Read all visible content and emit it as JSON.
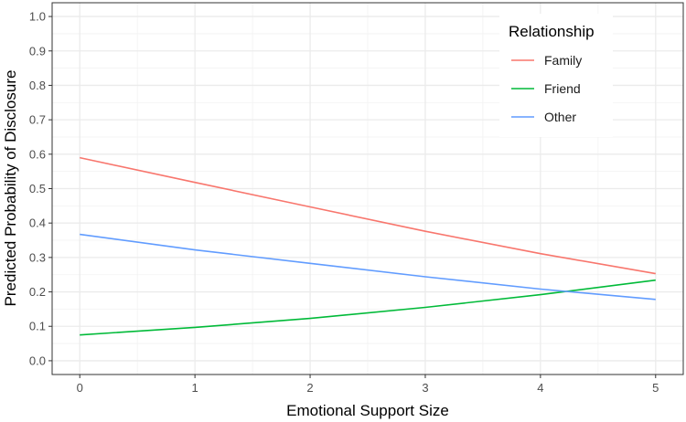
{
  "chart_data": {
    "type": "line",
    "xlabel": "Emotional Support Size",
    "ylabel": "Predicted Probability of Disclosure",
    "xlim": [
      -0.24,
      5.24
    ],
    "ylim": [
      -0.04,
      1.04
    ],
    "x_ticks": [
      0,
      1,
      2,
      3,
      4,
      5
    ],
    "x_tick_labels": [
      "0",
      "1",
      "2",
      "3",
      "4",
      "5"
    ],
    "y_ticks": [
      0.0,
      0.1,
      0.2,
      0.3,
      0.4,
      0.5,
      0.6,
      0.7,
      0.8,
      0.9,
      1.0
    ],
    "y_tick_labels": [
      "0.0",
      "0.1",
      "0.2",
      "0.3",
      "0.4",
      "0.5",
      "0.6",
      "0.7",
      "0.8",
      "0.9",
      "1.0"
    ],
    "grid": true,
    "legend": {
      "title": "Relationship",
      "position": "top-right"
    },
    "series": [
      {
        "name": "Family",
        "color": "#F8766D",
        "x": [
          0,
          1,
          2,
          3,
          4,
          5
        ],
        "y": [
          0.59,
          0.518,
          0.447,
          0.376,
          0.311,
          0.253
        ]
      },
      {
        "name": "Friend",
        "color": "#00BA38",
        "x": [
          0,
          1,
          2,
          3,
          4,
          5
        ],
        "y": [
          0.075,
          0.097,
          0.123,
          0.155,
          0.192,
          0.234
        ]
      },
      {
        "name": "Other",
        "color": "#619CFF",
        "x": [
          0,
          1,
          2,
          3,
          4,
          5
        ],
        "y": [
          0.367,
          0.322,
          0.283,
          0.244,
          0.208,
          0.178
        ]
      }
    ]
  }
}
